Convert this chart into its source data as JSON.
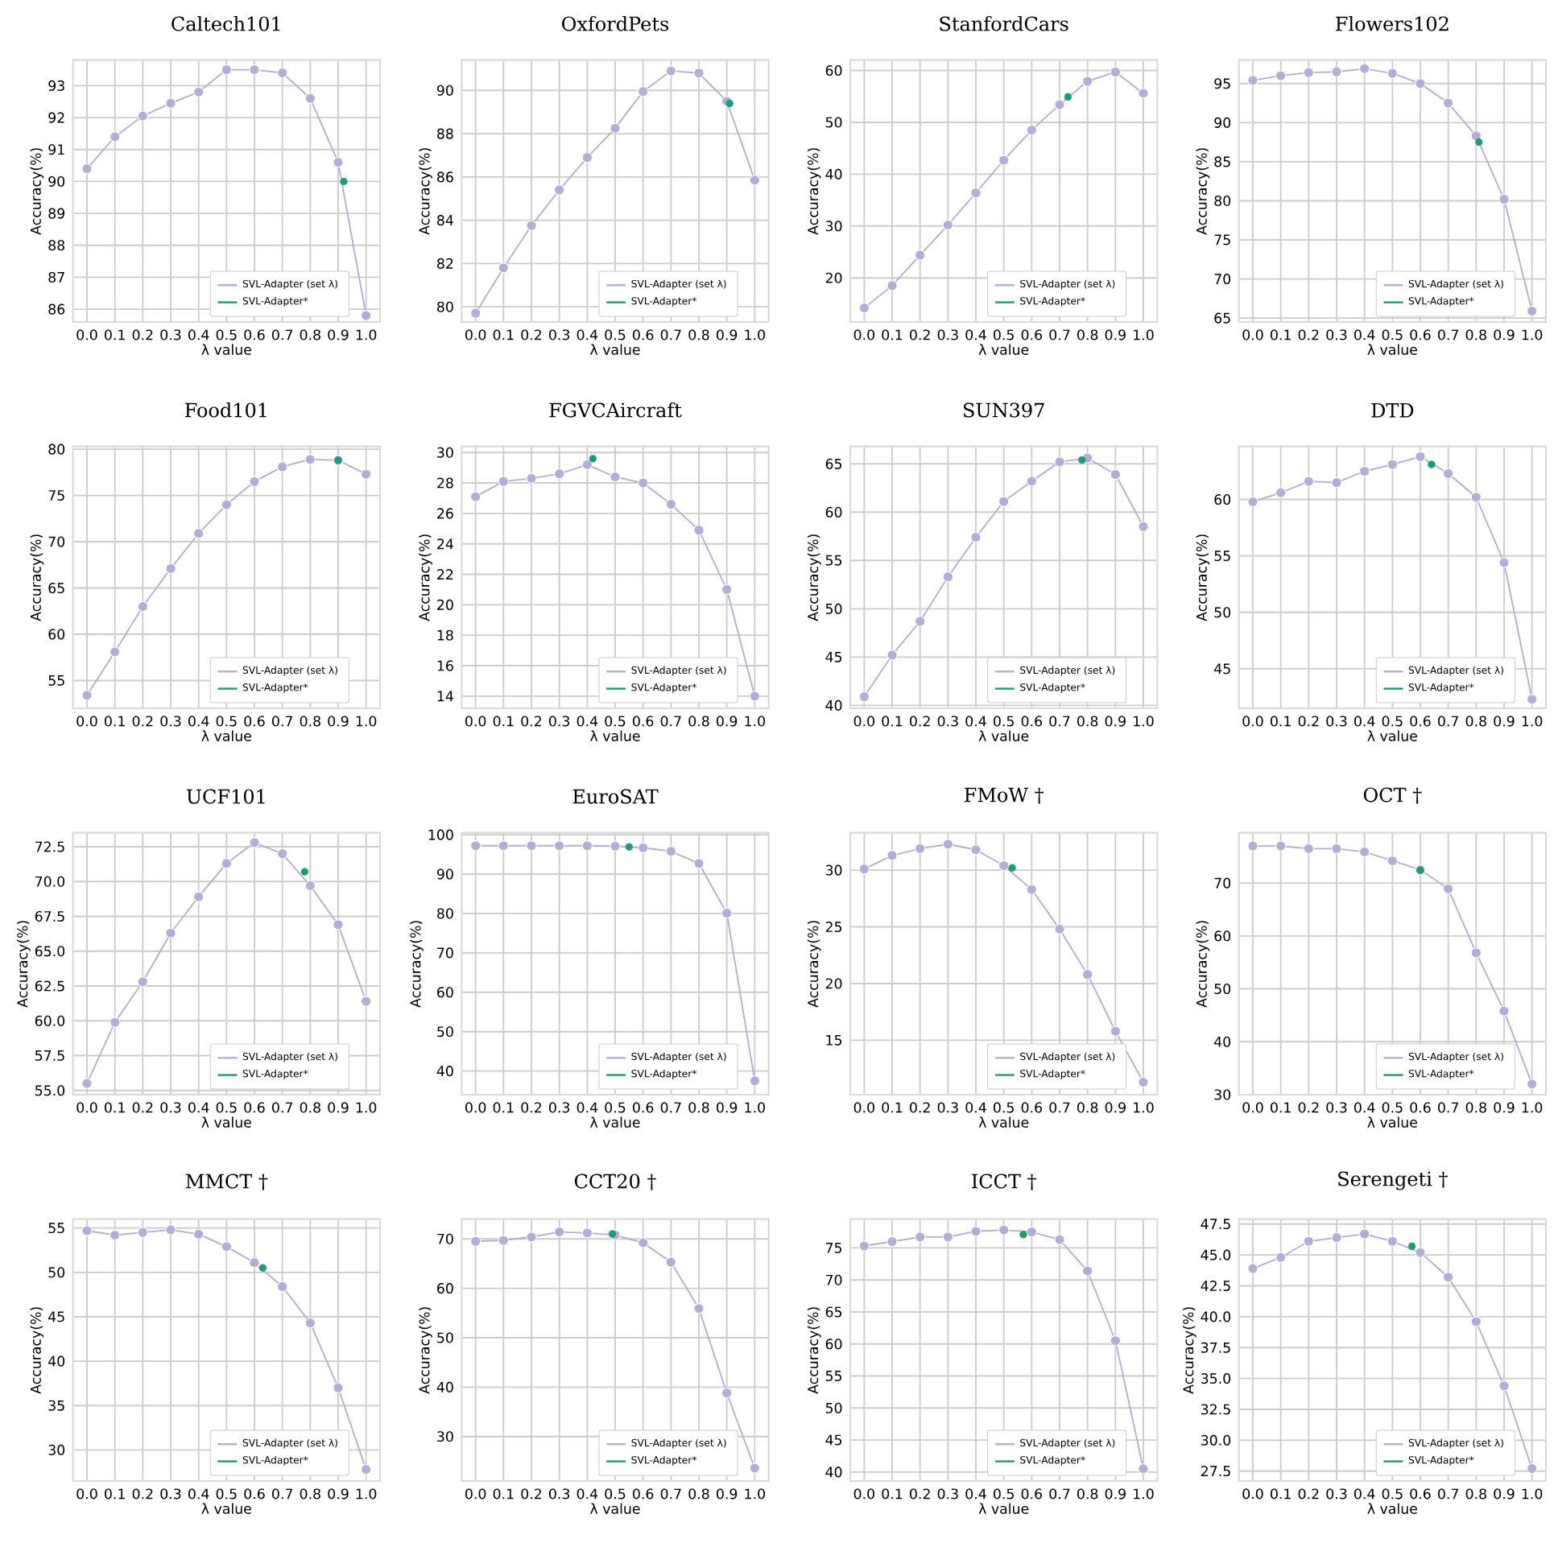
{
  "chart_data": [
    {
      "type": "line",
      "title": "Caltech101",
      "xlabel": "λ value",
      "ylabel": "Accuracy(%)",
      "x": [
        0,
        0.1,
        0.2,
        0.3,
        0.4,
        0.5,
        0.6,
        0.7,
        0.8,
        0.9,
        1.0
      ],
      "xlim": [
        -0.05,
        1.05
      ],
      "xticks": [
        {
          "value": 0,
          "label": "0.0"
        },
        {
          "value": 0.1,
          "label": "0.1"
        },
        {
          "value": 0.2,
          "label": "0.2"
        },
        {
          "value": 0.3,
          "label": "0.3"
        },
        {
          "value": 0.4,
          "label": "0.4"
        },
        {
          "value": 0.5,
          "label": "0.5"
        },
        {
          "value": 0.6,
          "label": "0.6"
        },
        {
          "value": 0.7,
          "label": "0.7"
        },
        {
          "value": 0.8,
          "label": "0.8"
        },
        {
          "value": 0.9,
          "label": "0.9"
        },
        {
          "value": 1.0,
          "label": "1.0"
        }
      ],
      "ylim": [
        85.6,
        93.8
      ],
      "yticks": [
        86,
        87,
        88,
        89,
        90,
        91,
        92,
        93
      ],
      "grid": true,
      "legend": "bottom right",
      "marker": "circle",
      "series": [
        {
          "name": "SVL-Adapter (set λ)",
          "color": "#b3aed8",
          "values": [
            90.4,
            91.4,
            92.05,
            92.45,
            92.8,
            93.5,
            93.5,
            93.4,
            92.6,
            90.6,
            85.8
          ]
        },
        {
          "name": "SVL-Adapter*",
          "type": "scatter",
          "color": "#1b9e77",
          "x": [
            0.92
          ],
          "values": [
            90.0
          ]
        }
      ]
    },
    {
      "type": "line",
      "title": "OxfordPets",
      "xlabel": "λ value",
      "ylabel": "Accuracy(%)",
      "x": [
        0,
        0.1,
        0.2,
        0.3,
        0.4,
        0.5,
        0.6,
        0.7,
        0.8,
        0.9,
        1.0
      ],
      "xlim": [
        -0.05,
        1.05
      ],
      "xticks": [
        {
          "value": 0,
          "label": "0.0"
        },
        {
          "value": 0.1,
          "label": "0.1"
        },
        {
          "value": 0.2,
          "label": "0.2"
        },
        {
          "value": 0.3,
          "label": "0.3"
        },
        {
          "value": 0.4,
          "label": "0.4"
        },
        {
          "value": 0.5,
          "label": "0.5"
        },
        {
          "value": 0.6,
          "label": "0.6"
        },
        {
          "value": 0.7,
          "label": "0.7"
        },
        {
          "value": 0.8,
          "label": "0.8"
        },
        {
          "value": 0.9,
          "label": "0.9"
        },
        {
          "value": 1.0,
          "label": "1.0"
        }
      ],
      "ylim": [
        79.3,
        91.4
      ],
      "yticks": [
        80,
        82,
        84,
        86,
        88,
        90
      ],
      "grid": true,
      "legend": "bottom right",
      "marker": "circle",
      "series": [
        {
          "name": "SVL-Adapter (set λ)",
          "color": "#b3aed8",
          "values": [
            79.7,
            81.8,
            83.75,
            85.4,
            86.9,
            88.25,
            89.95,
            90.9,
            90.8,
            89.5,
            85.85
          ]
        },
        {
          "name": "SVL-Adapter*",
          "type": "scatter",
          "color": "#1b9e77",
          "x": [
            0.91
          ],
          "values": [
            89.4
          ]
        }
      ]
    },
    {
      "type": "line",
      "title": "StanfordCars",
      "xlabel": "λ value",
      "ylabel": "Accuracy(%)",
      "x": [
        0,
        0.1,
        0.2,
        0.3,
        0.4,
        0.5,
        0.6,
        0.7,
        0.8,
        0.9,
        1.0
      ],
      "xlim": [
        -0.05,
        1.05
      ],
      "xticks": [
        {
          "value": 0,
          "label": "0.0"
        },
        {
          "value": 0.1,
          "label": "0.1"
        },
        {
          "value": 0.2,
          "label": "0.2"
        },
        {
          "value": 0.3,
          "label": "0.3"
        },
        {
          "value": 0.4,
          "label": "0.4"
        },
        {
          "value": 0.5,
          "label": "0.5"
        },
        {
          "value": 0.6,
          "label": "0.6"
        },
        {
          "value": 0.7,
          "label": "0.7"
        },
        {
          "value": 0.8,
          "label": "0.8"
        },
        {
          "value": 0.9,
          "label": "0.9"
        },
        {
          "value": 1.0,
          "label": "1.0"
        }
      ],
      "ylim": [
        11.5,
        62
      ],
      "yticks": [
        20,
        30,
        40,
        50,
        60
      ],
      "grid": true,
      "legend": "bottom right",
      "marker": "circle",
      "series": [
        {
          "name": "SVL-Adapter (set λ)",
          "color": "#b3aed8",
          "values": [
            14.2,
            18.5,
            24.4,
            30.2,
            36.4,
            42.7,
            48.5,
            53.4,
            57.9,
            59.7,
            55.6
          ]
        },
        {
          "name": "SVL-Adapter*",
          "type": "scatter",
          "color": "#1b9e77",
          "x": [
            0.73
          ],
          "values": [
            54.9
          ]
        }
      ]
    },
    {
      "type": "line",
      "title": "Flowers102",
      "xlabel": "λ value",
      "ylabel": "Accuracy(%)",
      "x": [
        0,
        0.1,
        0.2,
        0.3,
        0.4,
        0.5,
        0.6,
        0.7,
        0.8,
        0.9,
        1.0
      ],
      "xlim": [
        -0.05,
        1.05
      ],
      "xticks": [
        {
          "value": 0,
          "label": "0.0"
        },
        {
          "value": 0.1,
          "label": "0.1"
        },
        {
          "value": 0.2,
          "label": "0.2"
        },
        {
          "value": 0.3,
          "label": "0.3"
        },
        {
          "value": 0.4,
          "label": "0.4"
        },
        {
          "value": 0.5,
          "label": "0.5"
        },
        {
          "value": 0.6,
          "label": "0.6"
        },
        {
          "value": 0.7,
          "label": "0.7"
        },
        {
          "value": 0.8,
          "label": "0.8"
        },
        {
          "value": 0.9,
          "label": "0.9"
        },
        {
          "value": 1.0,
          "label": "1.0"
        }
      ],
      "ylim": [
        64.5,
        98
      ],
      "yticks": [
        65,
        70,
        75,
        80,
        85,
        90,
        95
      ],
      "grid": true,
      "legend": "bottom right",
      "marker": "circle",
      "series": [
        {
          "name": "SVL-Adapter (set λ)",
          "color": "#b3aed8",
          "values": [
            95.4,
            96.0,
            96.4,
            96.5,
            96.9,
            96.3,
            95.0,
            92.5,
            88.3,
            80.2,
            65.9
          ]
        },
        {
          "name": "SVL-Adapter*",
          "type": "scatter",
          "color": "#1b9e77",
          "x": [
            0.81
          ],
          "values": [
            87.5
          ]
        }
      ]
    },
    {
      "type": "line",
      "title": "Food101",
      "xlabel": "λ value",
      "ylabel": "Accuracy(%)",
      "x": [
        0,
        0.1,
        0.2,
        0.3,
        0.4,
        0.5,
        0.6,
        0.7,
        0.8,
        0.9,
        1.0
      ],
      "xlim": [
        -0.05,
        1.05
      ],
      "xticks": [
        {
          "value": 0,
          "label": "0.0"
        },
        {
          "value": 0.1,
          "label": "0.1"
        },
        {
          "value": 0.2,
          "label": "0.2"
        },
        {
          "value": 0.3,
          "label": "0.3"
        },
        {
          "value": 0.4,
          "label": "0.4"
        },
        {
          "value": 0.5,
          "label": "0.5"
        },
        {
          "value": 0.6,
          "label": "0.6"
        },
        {
          "value": 0.7,
          "label": "0.7"
        },
        {
          "value": 0.8,
          "label": "0.8"
        },
        {
          "value": 0.9,
          "label": "0.9"
        },
        {
          "value": 1.0,
          "label": "1.0"
        }
      ],
      "ylim": [
        52,
        80.3
      ],
      "yticks": [
        55,
        60,
        65,
        70,
        75,
        80
      ],
      "grid": true,
      "legend": "bottom right",
      "marker": "circle",
      "series": [
        {
          "name": "SVL-Adapter (set λ)",
          "color": "#b3aed8",
          "values": [
            53.4,
            58.1,
            63.0,
            67.1,
            70.9,
            74.0,
            76.5,
            78.1,
            78.9,
            78.8,
            77.3
          ]
        },
        {
          "name": "SVL-Adapter*",
          "type": "scatter",
          "color": "#1b9e77",
          "x": [
            0.9
          ],
          "values": [
            78.8
          ]
        }
      ]
    },
    {
      "type": "line",
      "title": "FGVCAircraft",
      "xlabel": "λ value",
      "ylabel": "Accuracy(%)",
      "x": [
        0,
        0.1,
        0.2,
        0.3,
        0.4,
        0.5,
        0.6,
        0.7,
        0.8,
        0.9,
        1.0
      ],
      "xlim": [
        -0.05,
        1.05
      ],
      "xticks": [
        {
          "value": 0,
          "label": "0.0"
        },
        {
          "value": 0.1,
          "label": "0.1"
        },
        {
          "value": 0.2,
          "label": "0.2"
        },
        {
          "value": 0.3,
          "label": "0.3"
        },
        {
          "value": 0.4,
          "label": "0.4"
        },
        {
          "value": 0.5,
          "label": "0.5"
        },
        {
          "value": 0.6,
          "label": "0.6"
        },
        {
          "value": 0.7,
          "label": "0.7"
        },
        {
          "value": 0.8,
          "label": "0.8"
        },
        {
          "value": 0.9,
          "label": "0.9"
        },
        {
          "value": 1.0,
          "label": "1.0"
        }
      ],
      "ylim": [
        13.2,
        30.4
      ],
      "yticks": [
        14,
        16,
        18,
        20,
        22,
        24,
        26,
        28,
        30
      ],
      "grid": true,
      "legend": "bottom right",
      "marker": "circle",
      "series": [
        {
          "name": "SVL-Adapter (set λ)",
          "color": "#b3aed8",
          "values": [
            27.1,
            28.1,
            28.3,
            28.6,
            29.2,
            28.4,
            28.0,
            26.6,
            24.9,
            21.0,
            14.0
          ]
        },
        {
          "name": "SVL-Adapter*",
          "type": "scatter",
          "color": "#1b9e77",
          "x": [
            0.42
          ],
          "values": [
            29.6
          ]
        }
      ]
    },
    {
      "type": "line",
      "title": "SUN397",
      "xlabel": "λ value",
      "ylabel": "Accuracy(%)",
      "x": [
        0,
        0.1,
        0.2,
        0.3,
        0.4,
        0.5,
        0.6,
        0.7,
        0.8,
        0.9,
        1.0
      ],
      "xlim": [
        -0.05,
        1.05
      ],
      "xticks": [
        {
          "value": 0,
          "label": "0.0"
        },
        {
          "value": 0.1,
          "label": "0.1"
        },
        {
          "value": 0.2,
          "label": "0.2"
        },
        {
          "value": 0.3,
          "label": "0.3"
        },
        {
          "value": 0.4,
          "label": "0.4"
        },
        {
          "value": 0.5,
          "label": "0.5"
        },
        {
          "value": 0.6,
          "label": "0.6"
        },
        {
          "value": 0.7,
          "label": "0.7"
        },
        {
          "value": 0.8,
          "label": "0.8"
        },
        {
          "value": 0.9,
          "label": "0.9"
        },
        {
          "value": 1.0,
          "label": "1.0"
        }
      ],
      "ylim": [
        39.7,
        66.8
      ],
      "yticks": [
        40,
        45,
        50,
        55,
        60,
        65
      ],
      "grid": true,
      "legend": "bottom right",
      "marker": "circle",
      "series": [
        {
          "name": "SVL-Adapter (set λ)",
          "color": "#b3aed8",
          "values": [
            40.9,
            45.2,
            48.7,
            53.3,
            57.4,
            61.1,
            63.2,
            65.2,
            65.6,
            63.9,
            58.5
          ]
        },
        {
          "name": "SVL-Adapter*",
          "type": "scatter",
          "color": "#1b9e77",
          "x": [
            0.78
          ],
          "values": [
            65.4
          ]
        }
      ]
    },
    {
      "type": "line",
      "title": "DTD",
      "xlabel": "λ value",
      "ylabel": "Accuracy(%)",
      "x": [
        0,
        0.1,
        0.2,
        0.3,
        0.4,
        0.5,
        0.6,
        0.7,
        0.8,
        0.9,
        1.0
      ],
      "xlim": [
        -0.05,
        1.05
      ],
      "xticks": [
        {
          "value": 0,
          "label": "0.0"
        },
        {
          "value": 0.1,
          "label": "0.1"
        },
        {
          "value": 0.2,
          "label": "0.2"
        },
        {
          "value": 0.3,
          "label": "0.3"
        },
        {
          "value": 0.4,
          "label": "0.4"
        },
        {
          "value": 0.5,
          "label": "0.5"
        },
        {
          "value": 0.6,
          "label": "0.6"
        },
        {
          "value": 0.7,
          "label": "0.7"
        },
        {
          "value": 0.8,
          "label": "0.8"
        },
        {
          "value": 0.9,
          "label": "0.9"
        },
        {
          "value": 1.0,
          "label": "1.0"
        }
      ],
      "ylim": [
        41.5,
        64.7
      ],
      "yticks": [
        45,
        50,
        55,
        60
      ],
      "grid": true,
      "legend": "bottom right",
      "marker": "circle",
      "series": [
        {
          "name": "SVL-Adapter (set λ)",
          "color": "#b3aed8",
          "values": [
            59.8,
            60.6,
            61.6,
            61.5,
            62.5,
            63.1,
            63.8,
            62.3,
            60.2,
            54.4,
            42.3
          ]
        },
        {
          "name": "SVL-Adapter*",
          "type": "scatter",
          "color": "#1b9e77",
          "x": [
            0.64
          ],
          "values": [
            63.1
          ]
        }
      ]
    },
    {
      "type": "line",
      "title": "UCF101",
      "xlabel": "λ value",
      "ylabel": "Accuracy(%)",
      "x": [
        0,
        0.1,
        0.2,
        0.3,
        0.4,
        0.5,
        0.6,
        0.7,
        0.8,
        0.9,
        1.0
      ],
      "xlim": [
        -0.05,
        1.05
      ],
      "xticks": [
        {
          "value": 0,
          "label": "0.0"
        },
        {
          "value": 0.1,
          "label": "0.1"
        },
        {
          "value": 0.2,
          "label": "0.2"
        },
        {
          "value": 0.3,
          "label": "0.3"
        },
        {
          "value": 0.4,
          "label": "0.4"
        },
        {
          "value": 0.5,
          "label": "0.5"
        },
        {
          "value": 0.6,
          "label": "0.6"
        },
        {
          "value": 0.7,
          "label": "0.7"
        },
        {
          "value": 0.8,
          "label": "0.8"
        },
        {
          "value": 0.9,
          "label": "0.9"
        },
        {
          "value": 1.0,
          "label": "1.0"
        }
      ],
      "ylim": [
        54.7,
        73.5
      ],
      "yticks": [
        {
          "value": 55,
          "label": "55.0"
        },
        57.5,
        {
          "value": 60,
          "label": "60.0"
        },
        62.5,
        {
          "value": 65,
          "label": "65.0"
        },
        67.5,
        {
          "value": 70,
          "label": "70.0"
        },
        72.5
      ],
      "grid": true,
      "legend": "bottom right",
      "marker": "circle",
      "series": [
        {
          "name": "SVL-Adapter (set λ)",
          "color": "#b3aed8",
          "values": [
            55.5,
            59.9,
            62.8,
            66.3,
            68.9,
            71.3,
            72.8,
            72.0,
            69.7,
            66.9,
            61.4
          ]
        },
        {
          "name": "SVL-Adapter*",
          "type": "scatter",
          "color": "#1b9e77",
          "x": [
            0.78
          ],
          "values": [
            70.7
          ]
        }
      ]
    },
    {
      "type": "line",
      "title": "EuroSAT",
      "xlabel": "λ value",
      "ylabel": "Accuracy(%)",
      "x": [
        0,
        0.1,
        0.2,
        0.3,
        0.4,
        0.5,
        0.6,
        0.7,
        0.8,
        0.9,
        1.0
      ],
      "xlim": [
        -0.05,
        1.05
      ],
      "xticks": [
        {
          "value": 0,
          "label": "0.0"
        },
        {
          "value": 0.1,
          "label": "0.1"
        },
        {
          "value": 0.2,
          "label": "0.2"
        },
        {
          "value": 0.3,
          "label": "0.3"
        },
        {
          "value": 0.4,
          "label": "0.4"
        },
        {
          "value": 0.5,
          "label": "0.5"
        },
        {
          "value": 0.6,
          "label": "0.6"
        },
        {
          "value": 0.7,
          "label": "0.7"
        },
        {
          "value": 0.8,
          "label": "0.8"
        },
        {
          "value": 0.9,
          "label": "0.9"
        },
        {
          "value": 1.0,
          "label": "1.0"
        }
      ],
      "ylim": [
        34,
        100.5
      ],
      "yticks": [
        40,
        50,
        60,
        70,
        80,
        90,
        100
      ],
      "grid": true,
      "legend": "bottom right",
      "marker": "circle",
      "series": [
        {
          "name": "SVL-Adapter (set λ)",
          "color": "#b3aed8",
          "values": [
            97.2,
            97.2,
            97.2,
            97.2,
            97.2,
            97.1,
            96.7,
            95.8,
            92.7,
            80.1,
            37.5
          ]
        },
        {
          "name": "SVL-Adapter*",
          "type": "scatter",
          "color": "#1b9e77",
          "x": [
            0.55
          ],
          "values": [
            96.9
          ]
        }
      ]
    },
    {
      "type": "line",
      "title": "FMoW †",
      "xlabel": "λ value",
      "ylabel": "Accuracy(%)",
      "x": [
        0,
        0.1,
        0.2,
        0.3,
        0.4,
        0.5,
        0.6,
        0.7,
        0.8,
        0.9,
        1.0
      ],
      "xlim": [
        -0.05,
        1.05
      ],
      "xticks": [
        {
          "value": 0,
          "label": "0.0"
        },
        {
          "value": 0.1,
          "label": "0.1"
        },
        {
          "value": 0.2,
          "label": "0.2"
        },
        {
          "value": 0.3,
          "label": "0.3"
        },
        {
          "value": 0.4,
          "label": "0.4"
        },
        {
          "value": 0.5,
          "label": "0.5"
        },
        {
          "value": 0.6,
          "label": "0.6"
        },
        {
          "value": 0.7,
          "label": "0.7"
        },
        {
          "value": 0.8,
          "label": "0.8"
        },
        {
          "value": 0.9,
          "label": "0.9"
        },
        {
          "value": 1.0,
          "label": "1.0"
        }
      ],
      "ylim": [
        10.2,
        33.3
      ],
      "yticks": [
        15,
        20,
        25,
        30
      ],
      "grid": true,
      "legend": "bottom right",
      "marker": "circle",
      "series": [
        {
          "name": "SVL-Adapter (set λ)",
          "color": "#b3aed8",
          "values": [
            30.1,
            31.3,
            31.9,
            32.3,
            31.8,
            30.4,
            28.3,
            24.8,
            20.8,
            15.8,
            11.3
          ]
        },
        {
          "name": "SVL-Adapter*",
          "type": "scatter",
          "color": "#1b9e77",
          "x": [
            0.53
          ],
          "values": [
            30.2
          ]
        }
      ]
    },
    {
      "type": "line",
      "title": "OCT †",
      "xlabel": "λ value",
      "ylabel": "Accuracy(%)",
      "x": [
        0,
        0.1,
        0.2,
        0.3,
        0.4,
        0.5,
        0.6,
        0.7,
        0.8,
        0.9,
        1.0
      ],
      "xlim": [
        -0.05,
        1.05
      ],
      "xticks": [
        {
          "value": 0,
          "label": "0.0"
        },
        {
          "value": 0.1,
          "label": "0.1"
        },
        {
          "value": 0.2,
          "label": "0.2"
        },
        {
          "value": 0.3,
          "label": "0.3"
        },
        {
          "value": 0.4,
          "label": "0.4"
        },
        {
          "value": 0.5,
          "label": "0.5"
        },
        {
          "value": 0.6,
          "label": "0.6"
        },
        {
          "value": 0.7,
          "label": "0.7"
        },
        {
          "value": 0.8,
          "label": "0.8"
        },
        {
          "value": 0.9,
          "label": "0.9"
        },
        {
          "value": 1.0,
          "label": "1.0"
        }
      ],
      "ylim": [
        30,
        79.5
      ],
      "yticks": [
        30,
        40,
        50,
        60,
        70
      ],
      "grid": true,
      "legend": "bottom right",
      "marker": "circle",
      "series": [
        {
          "name": "SVL-Adapter (set λ)",
          "color": "#b3aed8",
          "values": [
            77.0,
            77.0,
            76.5,
            76.5,
            75.9,
            74.2,
            72.5,
            68.9,
            56.8,
            45.8,
            32.0
          ]
        },
        {
          "name": "SVL-Adapter*",
          "type": "scatter",
          "color": "#1b9e77",
          "x": [
            0.6
          ],
          "values": [
            72.4
          ]
        }
      ]
    },
    {
      "type": "line",
      "title": "MMCT †",
      "xlabel": "λ value",
      "ylabel": "Accuracy(%)",
      "x": [
        0,
        0.1,
        0.2,
        0.3,
        0.4,
        0.5,
        0.6,
        0.7,
        0.8,
        0.9,
        1.0
      ],
      "xlim": [
        -0.05,
        1.05
      ],
      "xticks": [
        {
          "value": 0,
          "label": "0.0"
        },
        {
          "value": 0.1,
          "label": "0.1"
        },
        {
          "value": 0.2,
          "label": "0.2"
        },
        {
          "value": 0.3,
          "label": "0.3"
        },
        {
          "value": 0.4,
          "label": "0.4"
        },
        {
          "value": 0.5,
          "label": "0.5"
        },
        {
          "value": 0.6,
          "label": "0.6"
        },
        {
          "value": 0.7,
          "label": "0.7"
        },
        {
          "value": 0.8,
          "label": "0.8"
        },
        {
          "value": 0.9,
          "label": "0.9"
        },
        {
          "value": 1.0,
          "label": "1.0"
        }
      ],
      "ylim": [
        26.5,
        56
      ],
      "yticks": [
        30,
        35,
        40,
        45,
        50,
        55
      ],
      "grid": true,
      "legend": "bottom right",
      "marker": "circle",
      "series": [
        {
          "name": "SVL-Adapter (set λ)",
          "color": "#b3aed8",
          "values": [
            54.7,
            54.2,
            54.5,
            54.8,
            54.3,
            52.9,
            51.1,
            48.4,
            44.3,
            37.0,
            27.8
          ]
        },
        {
          "name": "SVL-Adapter*",
          "type": "scatter",
          "color": "#1b9e77",
          "x": [
            0.63
          ],
          "values": [
            50.5
          ]
        }
      ]
    },
    {
      "type": "line",
      "title": "CCT20 †",
      "xlabel": "λ value",
      "ylabel": "Accuracy(%)",
      "x": [
        0,
        0.1,
        0.2,
        0.3,
        0.4,
        0.5,
        0.6,
        0.7,
        0.8,
        0.9,
        1.0
      ],
      "xlim": [
        -0.05,
        1.05
      ],
      "xticks": [
        {
          "value": 0,
          "label": "0.0"
        },
        {
          "value": 0.1,
          "label": "0.1"
        },
        {
          "value": 0.2,
          "label": "0.2"
        },
        {
          "value": 0.3,
          "label": "0.3"
        },
        {
          "value": 0.4,
          "label": "0.4"
        },
        {
          "value": 0.5,
          "label": "0.5"
        },
        {
          "value": 0.6,
          "label": "0.6"
        },
        {
          "value": 0.7,
          "label": "0.7"
        },
        {
          "value": 0.8,
          "label": "0.8"
        },
        {
          "value": 0.9,
          "label": "0.9"
        },
        {
          "value": 1.0,
          "label": "1.0"
        }
      ],
      "ylim": [
        21,
        74
      ],
      "yticks": [
        30,
        40,
        50,
        60,
        70
      ],
      "grid": true,
      "legend": "bottom right",
      "marker": "circle",
      "series": [
        {
          "name": "SVL-Adapter (set λ)",
          "color": "#b3aed8",
          "values": [
            69.5,
            69.7,
            70.4,
            71.4,
            71.2,
            70.8,
            69.2,
            65.3,
            55.9,
            38.8,
            23.6
          ]
        },
        {
          "name": "SVL-Adapter*",
          "type": "scatter",
          "color": "#1b9e77",
          "x": [
            0.49
          ],
          "values": [
            71.0
          ]
        }
      ]
    },
    {
      "type": "line",
      "title": "ICCT †",
      "xlabel": "λ value",
      "ylabel": "Accuracy(%)",
      "x": [
        0,
        0.1,
        0.2,
        0.3,
        0.4,
        0.5,
        0.6,
        0.7,
        0.8,
        0.9,
        1.0
      ],
      "xlim": [
        -0.05,
        1.05
      ],
      "xticks": [
        {
          "value": 0,
          "label": "0.0"
        },
        {
          "value": 0.1,
          "label": "0.1"
        },
        {
          "value": 0.2,
          "label": "0.2"
        },
        {
          "value": 0.3,
          "label": "0.3"
        },
        {
          "value": 0.4,
          "label": "0.4"
        },
        {
          "value": 0.5,
          "label": "0.5"
        },
        {
          "value": 0.6,
          "label": "0.6"
        },
        {
          "value": 0.7,
          "label": "0.7"
        },
        {
          "value": 0.8,
          "label": "0.8"
        },
        {
          "value": 0.9,
          "label": "0.9"
        },
        {
          "value": 1.0,
          "label": "1.0"
        }
      ],
      "ylim": [
        38.6,
        79.5
      ],
      "yticks": [
        40,
        45,
        50,
        55,
        60,
        65,
        70,
        75
      ],
      "grid": true,
      "legend": "bottom right",
      "marker": "circle",
      "series": [
        {
          "name": "SVL-Adapter (set λ)",
          "color": "#b3aed8",
          "values": [
            75.3,
            76.0,
            76.7,
            76.7,
            77.6,
            77.8,
            77.5,
            76.3,
            71.4,
            60.5,
            40.5
          ]
        },
        {
          "name": "SVL-Adapter*",
          "type": "scatter",
          "color": "#1b9e77",
          "x": [
            0.57
          ],
          "values": [
            77.1
          ]
        }
      ]
    },
    {
      "type": "line",
      "title": "Serengeti †",
      "xlabel": "λ value",
      "ylabel": "Accuracy(%)",
      "x": [
        0,
        0.1,
        0.2,
        0.3,
        0.4,
        0.5,
        0.6,
        0.7,
        0.8,
        0.9,
        1.0
      ],
      "xlim": [
        -0.05,
        1.05
      ],
      "xticks": [
        {
          "value": 0,
          "label": "0.0"
        },
        {
          "value": 0.1,
          "label": "0.1"
        },
        {
          "value": 0.2,
          "label": "0.2"
        },
        {
          "value": 0.3,
          "label": "0.3"
        },
        {
          "value": 0.4,
          "label": "0.4"
        },
        {
          "value": 0.5,
          "label": "0.5"
        },
        {
          "value": 0.6,
          "label": "0.6"
        },
        {
          "value": 0.7,
          "label": "0.7"
        },
        {
          "value": 0.8,
          "label": "0.8"
        },
        {
          "value": 0.9,
          "label": "0.9"
        },
        {
          "value": 1.0,
          "label": "1.0"
        }
      ],
      "ylim": [
        26.7,
        47.9
      ],
      "yticks": [
        27.5,
        {
          "value": 30,
          "label": "30.0"
        },
        32.5,
        {
          "value": 35,
          "label": "35.0"
        },
        37.5,
        {
          "value": 40,
          "label": "40.0"
        },
        42.5,
        {
          "value": 45,
          "label": "45.0"
        },
        47.5
      ],
      "grid": true,
      "legend": "bottom right",
      "marker": "circle",
      "series": [
        {
          "name": "SVL-Adapter (set λ)",
          "color": "#b3aed8",
          "values": [
            43.9,
            44.8,
            46.1,
            46.4,
            46.7,
            46.1,
            45.2,
            43.2,
            39.6,
            34.4,
            27.7
          ]
        },
        {
          "name": "SVL-Adapter*",
          "type": "scatter",
          "color": "#1b9e77",
          "x": [
            0.57
          ],
          "values": [
            45.7
          ]
        }
      ]
    }
  ]
}
